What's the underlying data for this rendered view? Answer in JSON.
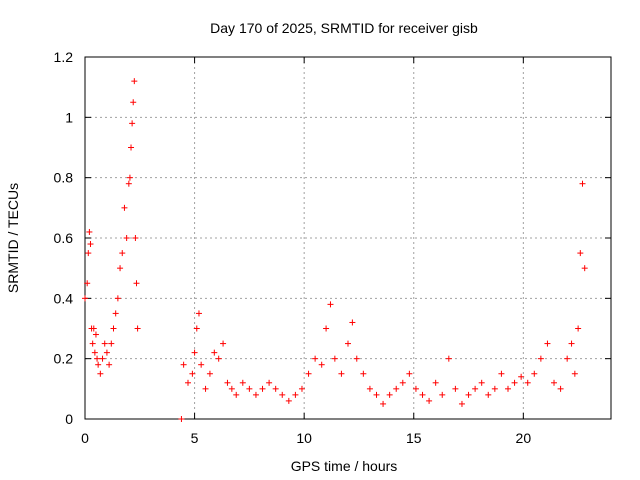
{
  "chart_data": {
    "type": "scatter",
    "title": "Day 170 of 2025, SRMTID for receiver gisb",
    "xlabel": "GPS time / hours",
    "ylabel": "SRMTID / TECUs",
    "xlim": [
      0,
      24
    ],
    "ylim": [
      0,
      1.2
    ],
    "x_ticks": [
      "0",
      "5",
      "10",
      "15",
      "20"
    ],
    "y_ticks": [
      "0",
      "0.2",
      "0.4",
      "0.6",
      "0.8",
      "1",
      "1.2"
    ],
    "grid": true,
    "marker": "plus",
    "marker_color": "#ff0000",
    "series": [
      {
        "name": "SRMTID",
        "segments": [
          {
            "x": [
              0.0,
              0.1,
              0.15,
              0.2,
              0.25,
              0.3,
              0.35,
              0.4,
              0.45,
              0.5,
              0.55,
              0.6,
              0.7,
              0.8,
              0.9,
              1.0,
              1.1,
              1.2,
              1.3,
              1.4,
              1.5,
              1.6,
              1.7,
              1.8,
              1.9,
              2.0,
              2.05,
              2.1,
              2.15,
              2.2,
              2.25,
              2.3,
              2.35,
              2.4
            ],
            "y": [
              0.4,
              0.45,
              0.55,
              0.62,
              0.58,
              0.3,
              0.25,
              0.3,
              0.22,
              0.28,
              0.2,
              0.18,
              0.15,
              0.2,
              0.25,
              0.22,
              0.18,
              0.25,
              0.3,
              0.35,
              0.4,
              0.5,
              0.55,
              0.7,
              0.6,
              0.78,
              0.8,
              0.9,
              0.98,
              1.05,
              1.12,
              0.6,
              0.45,
              0.3
            ]
          },
          {
            "x": [
              4.4
            ],
            "y": [
              0.0
            ]
          },
          {
            "x": [
              4.5,
              4.7,
              4.9,
              5.0,
              5.1,
              5.2,
              5.3,
              5.5,
              5.7,
              5.9,
              6.1,
              6.3,
              6.5,
              6.7,
              6.9,
              7.2,
              7.5,
              7.8,
              8.1,
              8.4,
              8.7,
              9.0,
              9.3,
              9.6,
              9.9,
              10.2,
              10.5,
              10.8,
              11.0,
              11.2,
              11.4,
              11.7,
              12.0,
              12.2,
              12.4,
              12.7,
              13.0,
              13.3,
              13.6,
              13.9,
              14.2,
              14.5,
              14.8,
              15.1,
              15.4,
              15.7,
              16.0,
              16.3,
              16.6,
              16.9,
              17.2,
              17.5,
              17.8,
              18.1,
              18.4,
              18.7,
              19.0,
              19.3,
              19.6,
              19.9,
              20.2,
              20.5,
              20.8,
              21.1,
              21.4,
              21.7,
              22.0,
              22.2,
              22.35,
              22.5,
              22.6,
              22.7,
              22.8
            ],
            "y": [
              0.18,
              0.12,
              0.15,
              0.22,
              0.3,
              0.35,
              0.18,
              0.1,
              0.15,
              0.22,
              0.2,
              0.25,
              0.12,
              0.1,
              0.08,
              0.12,
              0.1,
              0.08,
              0.1,
              0.12,
              0.1,
              0.08,
              0.06,
              0.08,
              0.1,
              0.15,
              0.2,
              0.18,
              0.3,
              0.38,
              0.2,
              0.15,
              0.25,
              0.32,
              0.2,
              0.15,
              0.1,
              0.08,
              0.05,
              0.08,
              0.1,
              0.12,
              0.15,
              0.1,
              0.08,
              0.06,
              0.12,
              0.08,
              0.2,
              0.1,
              0.05,
              0.08,
              0.1,
              0.12,
              0.08,
              0.1,
              0.15,
              0.1,
              0.12,
              0.14,
              0.12,
              0.15,
              0.2,
              0.25,
              0.12,
              0.1,
              0.2,
              0.25,
              0.15,
              0.3,
              0.55,
              0.78,
              0.5
            ]
          }
        ]
      }
    ]
  }
}
